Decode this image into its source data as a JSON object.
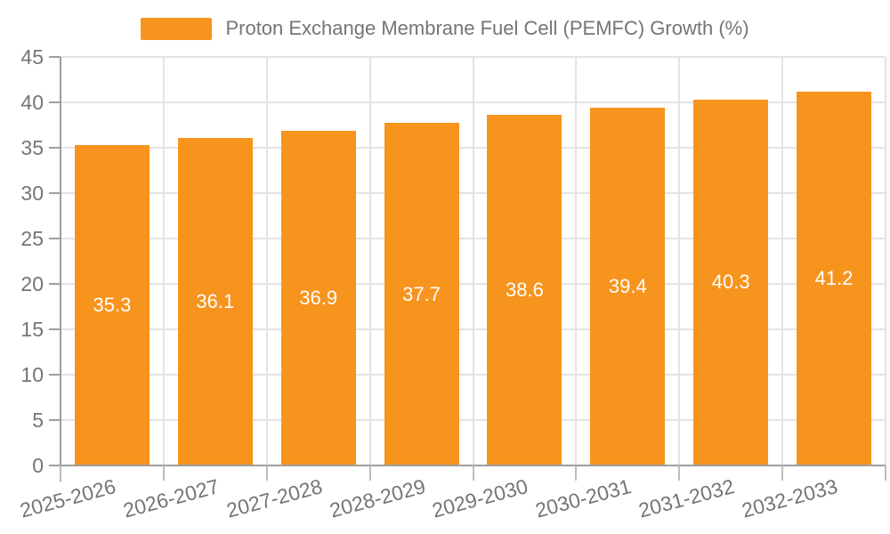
{
  "legend": {
    "label": "Proton Exchange Membrane Fuel Cell (PEMFC) Growth (%)",
    "swatch_color": "#F7941E"
  },
  "chart_data": {
    "type": "bar",
    "title": "Proton Exchange Membrane Fuel Cell (PEMFC) Growth (%)",
    "categories": [
      "2025-2026",
      "2026-2027",
      "2027-2028",
      "2028-2029",
      "2029-2030",
      "2030-2031",
      "2031-2032",
      "2032-2033"
    ],
    "values": [
      35.3,
      36.1,
      36.9,
      37.7,
      38.6,
      39.4,
      40.3,
      41.2
    ],
    "value_labels": [
      "35.3",
      "36.1",
      "36.9",
      "37.7",
      "38.6",
      "39.4",
      "40.3",
      "41.2"
    ],
    "xlabel": "",
    "ylabel": "",
    "ylim": [
      0,
      45
    ],
    "ytick_labels": [
      "0",
      "5",
      "10",
      "15",
      "20",
      "25",
      "30",
      "35",
      "40",
      "45"
    ],
    "grid": "both",
    "legend_position": "top-center",
    "bar_color": "#F7941E",
    "value_label_color": "#ffffff",
    "axis_color": "#9e9e9e",
    "grid_color": "#e3e3e3",
    "text_color": "#757575"
  }
}
